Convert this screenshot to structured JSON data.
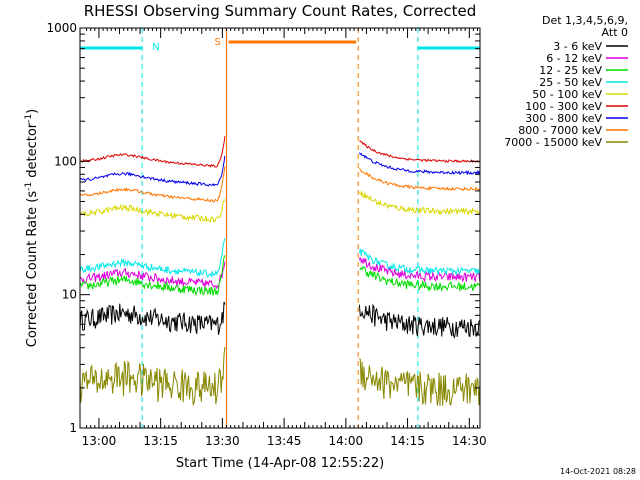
{
  "chart_data": {
    "type": "line",
    "title": "RHESSI Observing Summary Count Rates, Corrected",
    "xlabel": "Start Time (14-Apr-08 12:55:22)",
    "ylabel": "Corrected Count Rate (s⁻¹ detector⁻¹)",
    "ylabel_parts": [
      "Corrected Count Rate (s",
      "-1",
      " detector",
      "-1",
      ")"
    ],
    "yscale": "log",
    "ylim": [
      1,
      1000
    ],
    "xlim_minutes_after_1300": [
      -4.6,
      32.5
    ],
    "x_ticks": [
      {
        "label": "13:00",
        "min": 0
      },
      {
        "label": "13:15",
        "min": 15
      },
      {
        "label": "13:30",
        "min": 30
      },
      {
        "label": "13:45",
        "min": 45
      },
      {
        "label": "14:00",
        "min": 60
      },
      {
        "label": "14:15",
        "min": 75
      },
      {
        "label": "14:30",
        "min": 90
      }
    ],
    "y_ticks": [
      {
        "label": "1",
        "v": 1
      },
      {
        "label": "10",
        "v": 10
      },
      {
        "label": "100",
        "v": 100
      },
      {
        "label": "1000",
        "v": 1000
      }
    ],
    "legend_header": [
      "Det 1,3,4,5,6,9,",
      "Att 0"
    ],
    "legend_position": "right",
    "gap_minutes": [
      31,
      63
    ],
    "series": [
      {
        "name": "3 - 6 keV",
        "color": "#000000",
        "level_pre": 6.5,
        "level_post": 5.8,
        "noise": 0.18,
        "peak": 9
      },
      {
        "name": "6 - 12 keV",
        "color": "#dd00dd",
        "level_pre": 13,
        "level_post": 13.5,
        "noise": 0.08,
        "peak": 20
      },
      {
        "name": "12 - 25 keV",
        "color": "#00dd00",
        "level_pre": 11.5,
        "level_post": 11.5,
        "noise": 0.08,
        "peak": 22
      },
      {
        "name": "25 - 50 keV",
        "color": "#00e8e8",
        "level_pre": 15.5,
        "level_post": 15,
        "noise": 0.06,
        "peak": 30
      },
      {
        "name": "50 - 100 keV",
        "color": "#d8d800",
        "level_pre": 40,
        "level_post": 42,
        "noise": 0.05,
        "peak": 60
      },
      {
        "name": "100 - 300 keV",
        "color": "#dd0000",
        "level_pre": 100,
        "level_post": 100,
        "noise": 0.02,
        "peak": 170
      },
      {
        "name": "300 - 800 keV",
        "color": "#0000ee",
        "level_pre": 72,
        "level_post": 82,
        "noise": 0.025,
        "peak": 120
      },
      {
        "name": "800 - 7000 keV",
        "color": "#ff7700",
        "level_pre": 55,
        "level_post": 62,
        "noise": 0.025,
        "peak": 100
      },
      {
        "name": "7000 - 15000 keV",
        "color": "#888800",
        "level_pre": 2.2,
        "level_post": 2.0,
        "noise": 0.3,
        "peak": 4
      }
    ],
    "annotations": [
      {
        "label": "N",
        "kind": "night",
        "start_min": -5,
        "end_min": 10.5,
        "color": "#00e8e8"
      },
      {
        "label": "",
        "kind": "night",
        "start_min": 77.5,
        "end_min": 93,
        "color": "#00e8e8"
      },
      {
        "label": "S",
        "kind": "saa",
        "start_min": 31,
        "end_min": 63,
        "color": "#ff7700"
      }
    ],
    "timestamp": "14-Oct-2021 08:28"
  }
}
